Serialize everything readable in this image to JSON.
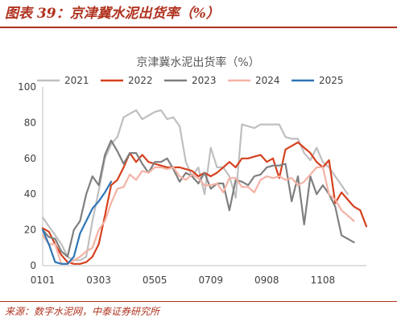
{
  "figure": {
    "title": "图表 39：京津冀水泥出货率（%）",
    "source": "来源：数字水泥网，中泰证券研究所"
  },
  "chart_data": {
    "type": "line",
    "title": "京津冀水泥出货率（%）",
    "xlabel": "",
    "ylabel": "",
    "ylim": [
      0,
      100
    ],
    "yticks": [
      0,
      20,
      40,
      60,
      80,
      100
    ],
    "xlim": [
      0,
      52
    ],
    "xticks": [
      {
        "pos": 0,
        "label": "0101"
      },
      {
        "pos": 9,
        "label": "0303"
      },
      {
        "pos": 18,
        "label": "0505"
      },
      {
        "pos": 27,
        "label": "0709"
      },
      {
        "pos": 36,
        "label": "0908"
      },
      {
        "pos": 45,
        "label": "1108"
      }
    ],
    "legend_position": "top",
    "grid": false,
    "series": [
      {
        "name": "2021",
        "color": "#bfbfbf",
        "values": [
          27,
          22,
          17,
          12,
          5,
          3,
          3,
          5,
          25,
          42,
          60,
          68,
          72,
          83,
          85,
          87,
          82,
          84,
          86,
          87,
          82,
          83,
          78,
          58,
          50,
          55,
          40,
          66,
          55,
          55,
          50,
          38,
          79,
          78,
          77,
          79,
          79,
          79,
          79,
          72,
          71,
          71,
          63,
          59,
          66,
          58,
          55,
          50,
          45,
          40
        ]
      },
      {
        "name": "2022",
        "color": "#d4411e",
        "values": [
          21,
          19,
          12,
          6,
          2,
          1,
          1,
          2,
          5,
          12,
          28,
          45,
          48,
          55,
          63,
          58,
          62,
          58,
          57,
          56,
          55,
          55,
          55,
          54,
          53,
          50,
          52,
          50,
          52,
          55,
          58,
          55,
          60,
          60,
          61,
          62,
          58,
          60,
          49,
          65,
          67,
          69,
          66,
          63,
          58,
          55,
          59,
          35,
          41,
          37,
          33,
          31,
          22
        ]
      },
      {
        "name": "2023",
        "color": "#7f7f7f",
        "values": [
          20,
          16,
          15,
          8,
          5,
          20,
          25,
          40,
          50,
          45,
          62,
          70,
          64,
          57,
          63,
          63,
          57,
          52,
          58,
          58,
          60,
          54,
          47,
          52,
          50,
          46,
          52,
          43,
          46,
          46,
          31,
          48,
          47,
          45,
          50,
          51,
          55,
          56,
          56,
          57,
          36,
          50,
          23,
          50,
          40,
          45,
          40,
          33,
          17,
          15,
          13
        ]
      },
      {
        "name": "2024",
        "color": "#f4b2a5",
        "values": [
          17,
          12,
          12,
          1,
          1,
          3,
          5,
          8,
          10,
          20,
          25,
          35,
          43,
          44,
          51,
          48,
          53,
          52,
          55,
          55,
          54,
          55,
          50,
          48,
          51,
          49,
          45,
          45,
          46,
          41,
          49,
          49,
          44,
          44,
          41,
          48,
          50,
          49,
          50,
          48,
          49,
          45,
          47,
          51,
          55,
          55,
          40,
          37,
          31,
          28,
          25
        ]
      },
      {
        "name": "2025",
        "color": "#2e75b6",
        "values": [
          20,
          12,
          2,
          1,
          1,
          5,
          18,
          25,
          32,
          36,
          41,
          47
        ]
      }
    ]
  }
}
